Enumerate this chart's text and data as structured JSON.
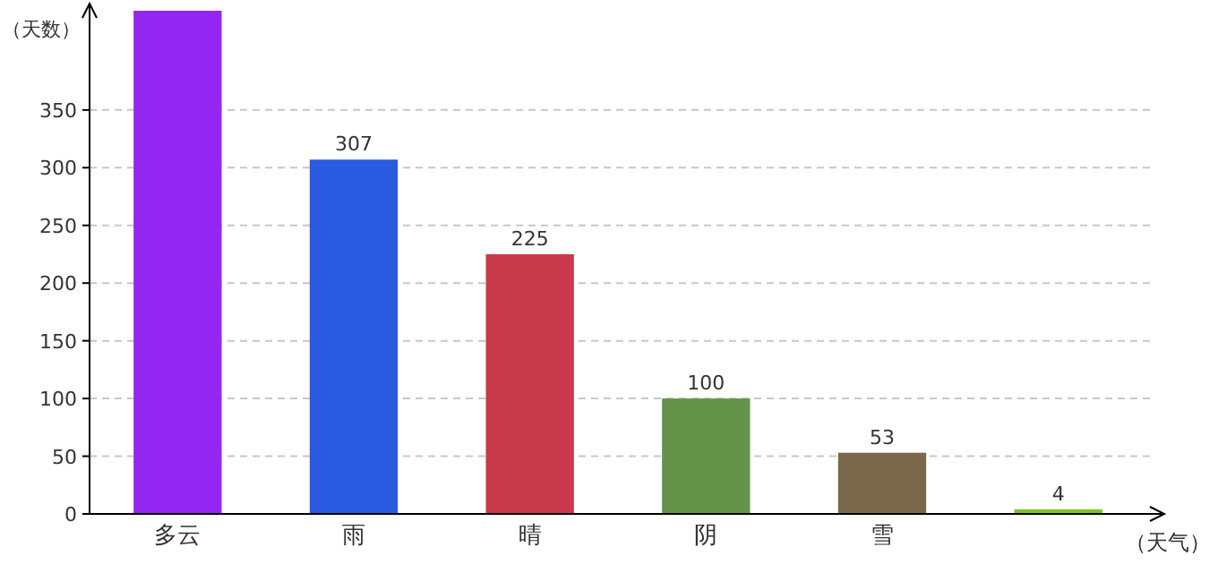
{
  "chart_data": {
    "type": "bar",
    "xlabel": "（天气）",
    "ylabel": "（天数）",
    "categories": [
      "多云",
      "雨",
      "晴",
      "阴",
      "雪",
      null
    ],
    "values": [
      436,
      307,
      225,
      100,
      53,
      4
    ],
    "colors": [
      "#9326f0",
      "#2a5ae0",
      "#c8394b",
      "#639348",
      "#7a684a",
      "#7ec22a"
    ],
    "value_labels": [
      null,
      "307",
      "225",
      "100",
      "53",
      "4"
    ],
    "ylim": [
      0,
      436
    ],
    "yticks": [
      0,
      50,
      100,
      150,
      200,
      250,
      300,
      350
    ],
    "grid": "y"
  }
}
